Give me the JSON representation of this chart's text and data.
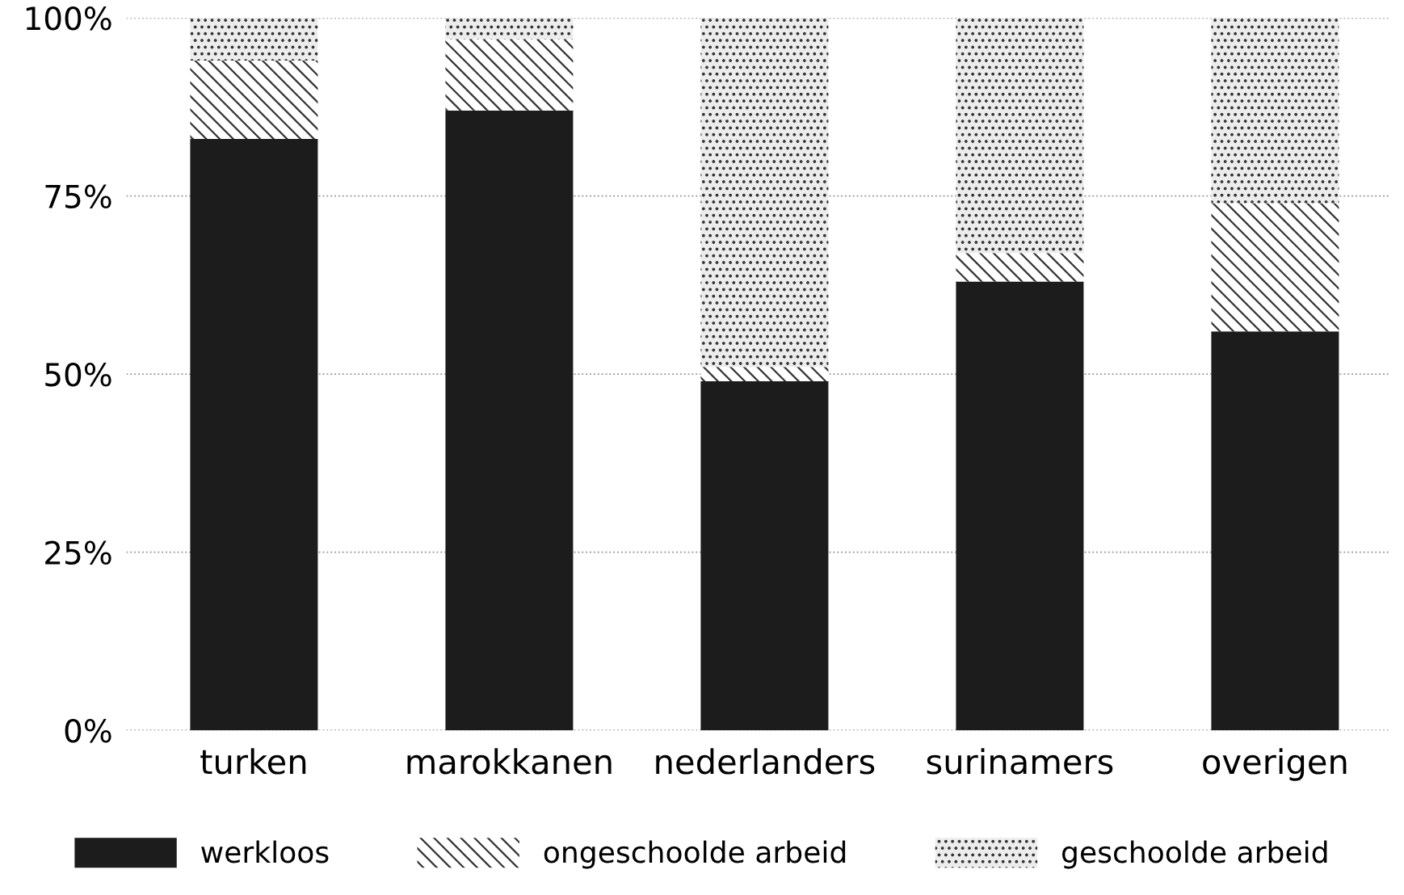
{
  "chart_data": {
    "type": "bar",
    "stacked": true,
    "categories": [
      "turken",
      "marokkanen",
      "nederlanders",
      "surinamers",
      "overigen"
    ],
    "series": [
      {
        "name": "werkloos",
        "color": "#1c1c1c",
        "values": [
          83,
          87,
          49,
          63,
          56
        ]
      },
      {
        "name": "ongeschoolde arbeid",
        "color": "#ffffff",
        "values": [
          11,
          10,
          2,
          4,
          18
        ]
      },
      {
        "name": "geschoolde arbeid",
        "color": "#ececec",
        "values": [
          6,
          3,
          49,
          33,
          26
        ]
      }
    ],
    "ylim": [
      0,
      100
    ],
    "yticks": [
      {
        "value": 0,
        "label": "0%"
      },
      {
        "value": 25,
        "label": "25%"
      },
      {
        "value": 50,
        "label": "50%"
      },
      {
        "value": 75,
        "label": "75%"
      },
      {
        "value": 100,
        "label": "100%"
      }
    ],
    "grid": "y",
    "legend": "bottom"
  }
}
